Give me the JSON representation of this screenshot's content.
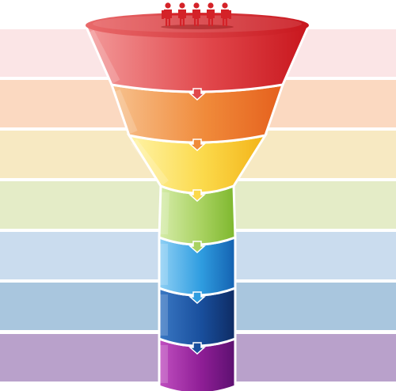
{
  "stages": [
    {
      "key": "red",
      "band": "#fbe5e6",
      "light": "#f39b9b",
      "mid": "#e1474b",
      "dark": "#c8161d"
    },
    {
      "key": "orange",
      "band": "#fbd9c1",
      "light": "#f7c28f",
      "mid": "#f08a3a",
      "dark": "#e5601d"
    },
    {
      "key": "yellow",
      "band": "#f7e9c2",
      "light": "#fff4a8",
      "mid": "#fbd94a",
      "dark": "#f3b318"
    },
    {
      "key": "green",
      "band": "#e4ecc7",
      "light": "#d6ecaa",
      "mid": "#a9d261",
      "dark": "#7db72d"
    },
    {
      "key": "blue",
      "band": "#cadcee",
      "light": "#8fd0f5",
      "mid": "#2f9de0",
      "dark": "#1461b0"
    },
    {
      "key": "navy",
      "band": "#a9c6de",
      "light": "#3a78c4",
      "mid": "#194f9d",
      "dark": "#0e2b63"
    },
    {
      "key": "purple",
      "band": "#b9a1cb",
      "light": "#c04fc0",
      "mid": "#8f1e96",
      "dark": "#5c1070"
    }
  ],
  "icons": {
    "people": "people-group-icon",
    "arrow": "down-arrow-icon"
  },
  "people_color": "#d42228",
  "people_count": 5
}
